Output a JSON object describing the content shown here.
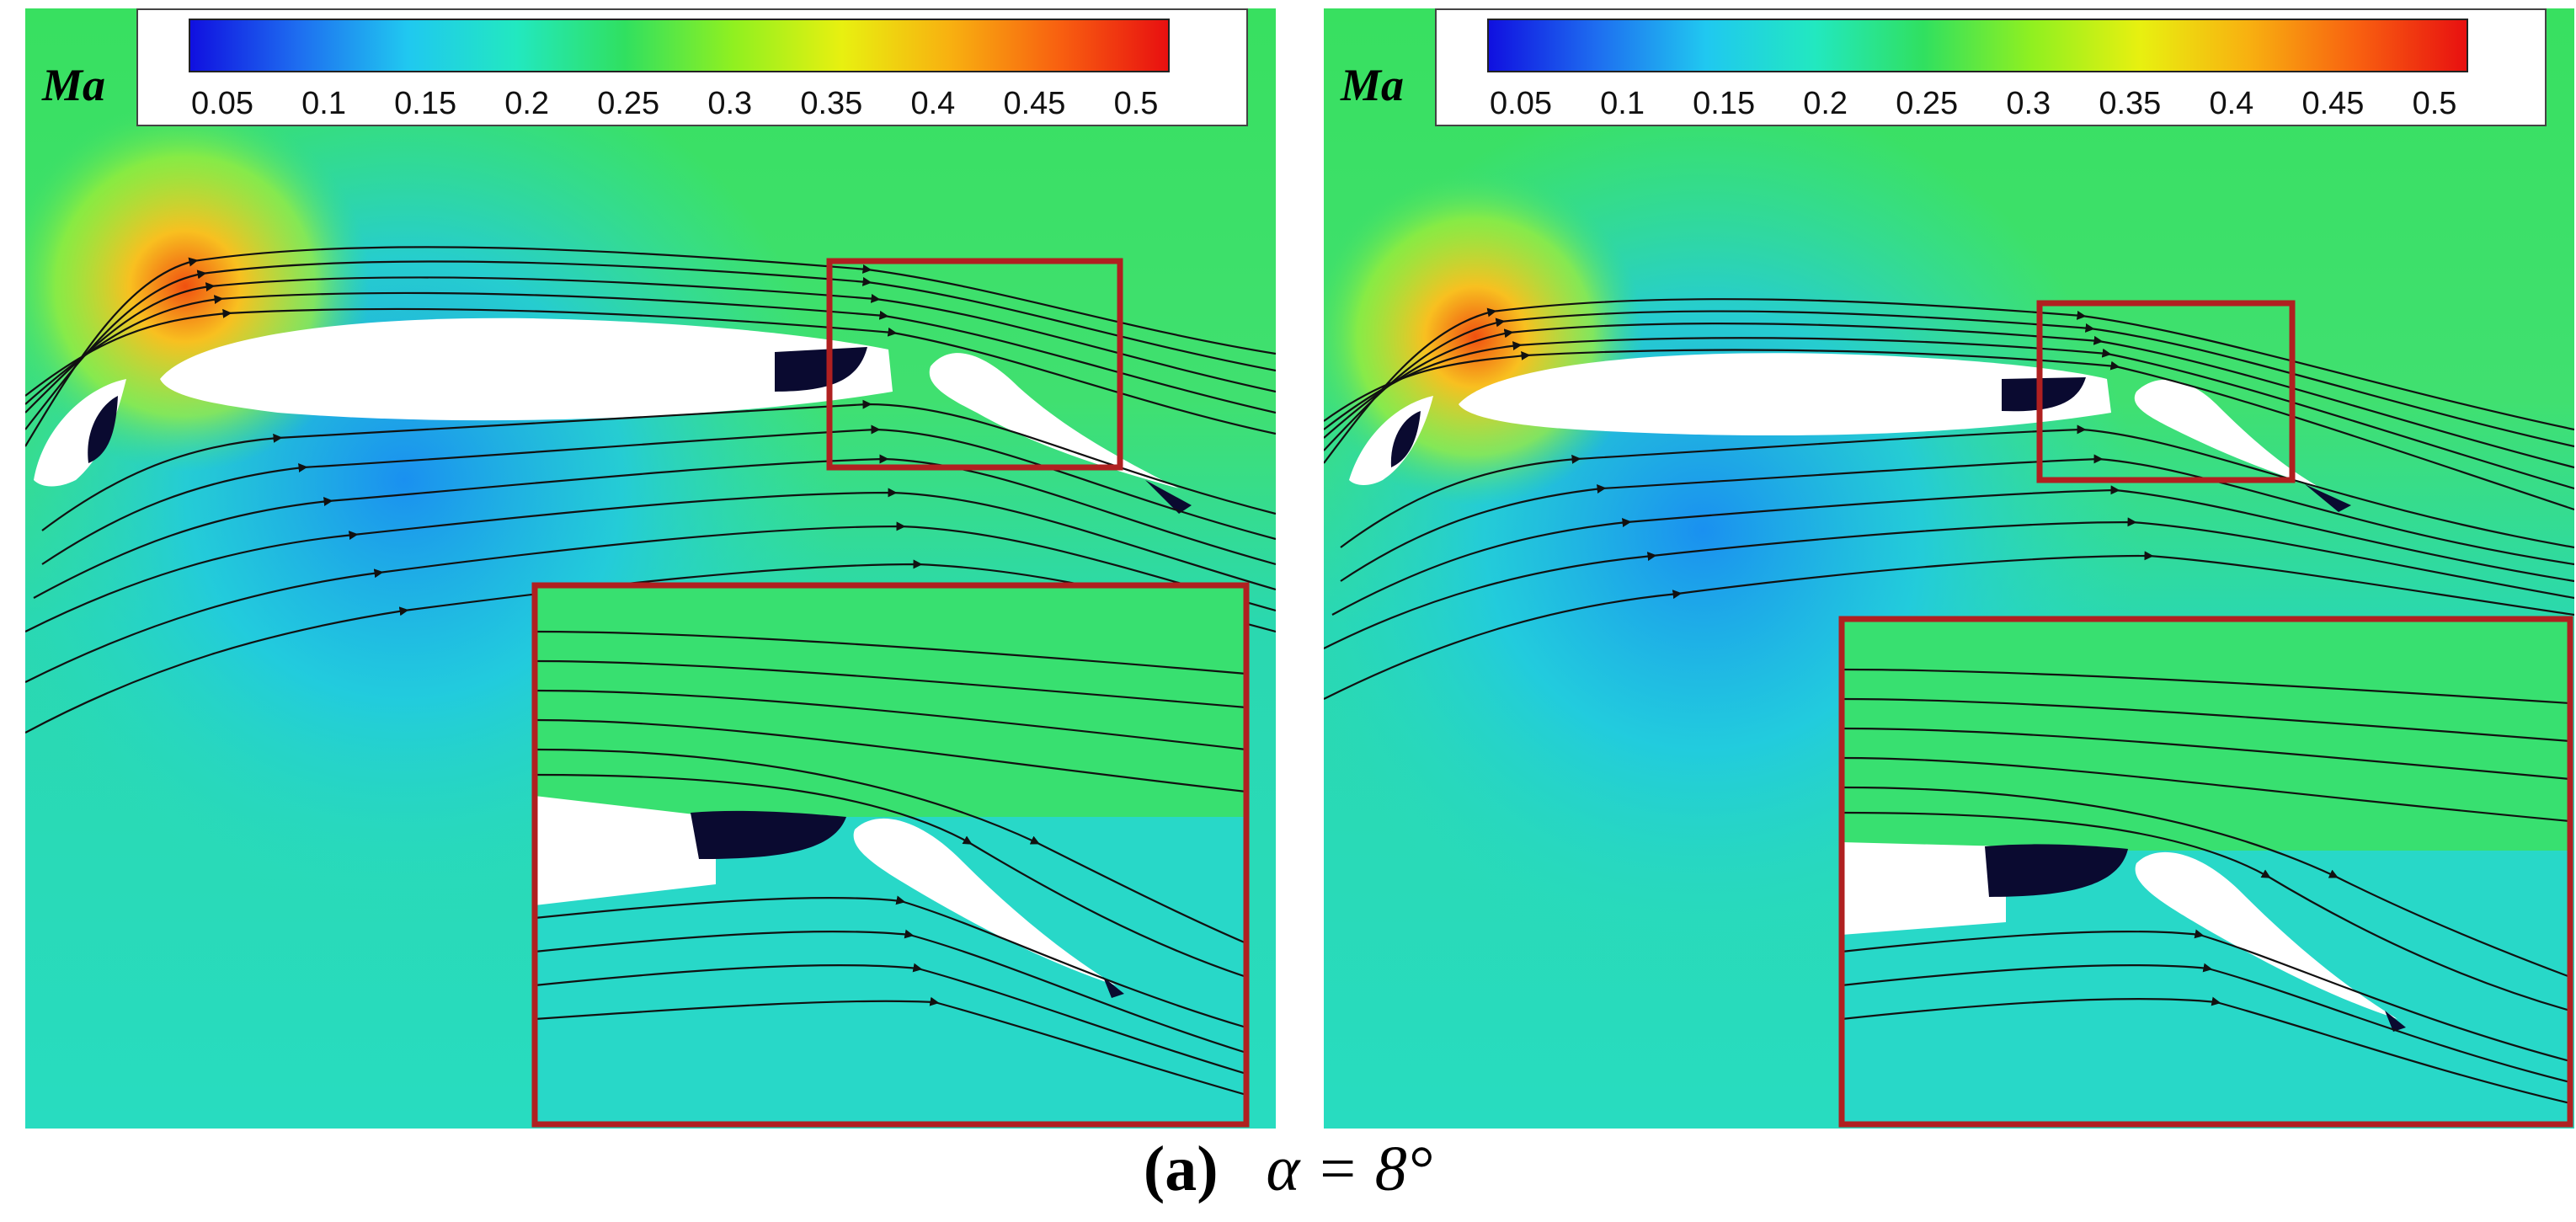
{
  "panels": [
    {
      "id": "left",
      "quantity_label": "Ma",
      "colorbar": {
        "ticks": [
          "0.05",
          "0.1",
          "0.15",
          "0.2",
          "0.25",
          "0.3",
          "0.35",
          "0.4",
          "0.45",
          "0.5"
        ],
        "colors": [
          "#1010e0",
          "#1e6ef0",
          "#20c8f0",
          "#22e8c0",
          "#30e060",
          "#90f020",
          "#e8f010",
          "#f8b010",
          "#f86010",
          "#e81010"
        ]
      }
    },
    {
      "id": "right",
      "quantity_label": "Ma",
      "colorbar": {
        "ticks": [
          "0.05",
          "0.1",
          "0.15",
          "0.2",
          "0.25",
          "0.3",
          "0.35",
          "0.4",
          "0.45",
          "0.5"
        ],
        "colors": [
          "#1010e0",
          "#1e6ef0",
          "#20c8f0",
          "#22e8c0",
          "#30e060",
          "#90f020",
          "#e8f010",
          "#f8b010",
          "#f86010",
          "#e81010"
        ]
      }
    }
  ],
  "caption": {
    "letter": "(a)",
    "formula": "α = 8°"
  },
  "colors": {
    "highlight_box": "#b02020",
    "freestream": "#33e07a",
    "low_speed": "#20d8d8",
    "streamline": "#111111"
  }
}
